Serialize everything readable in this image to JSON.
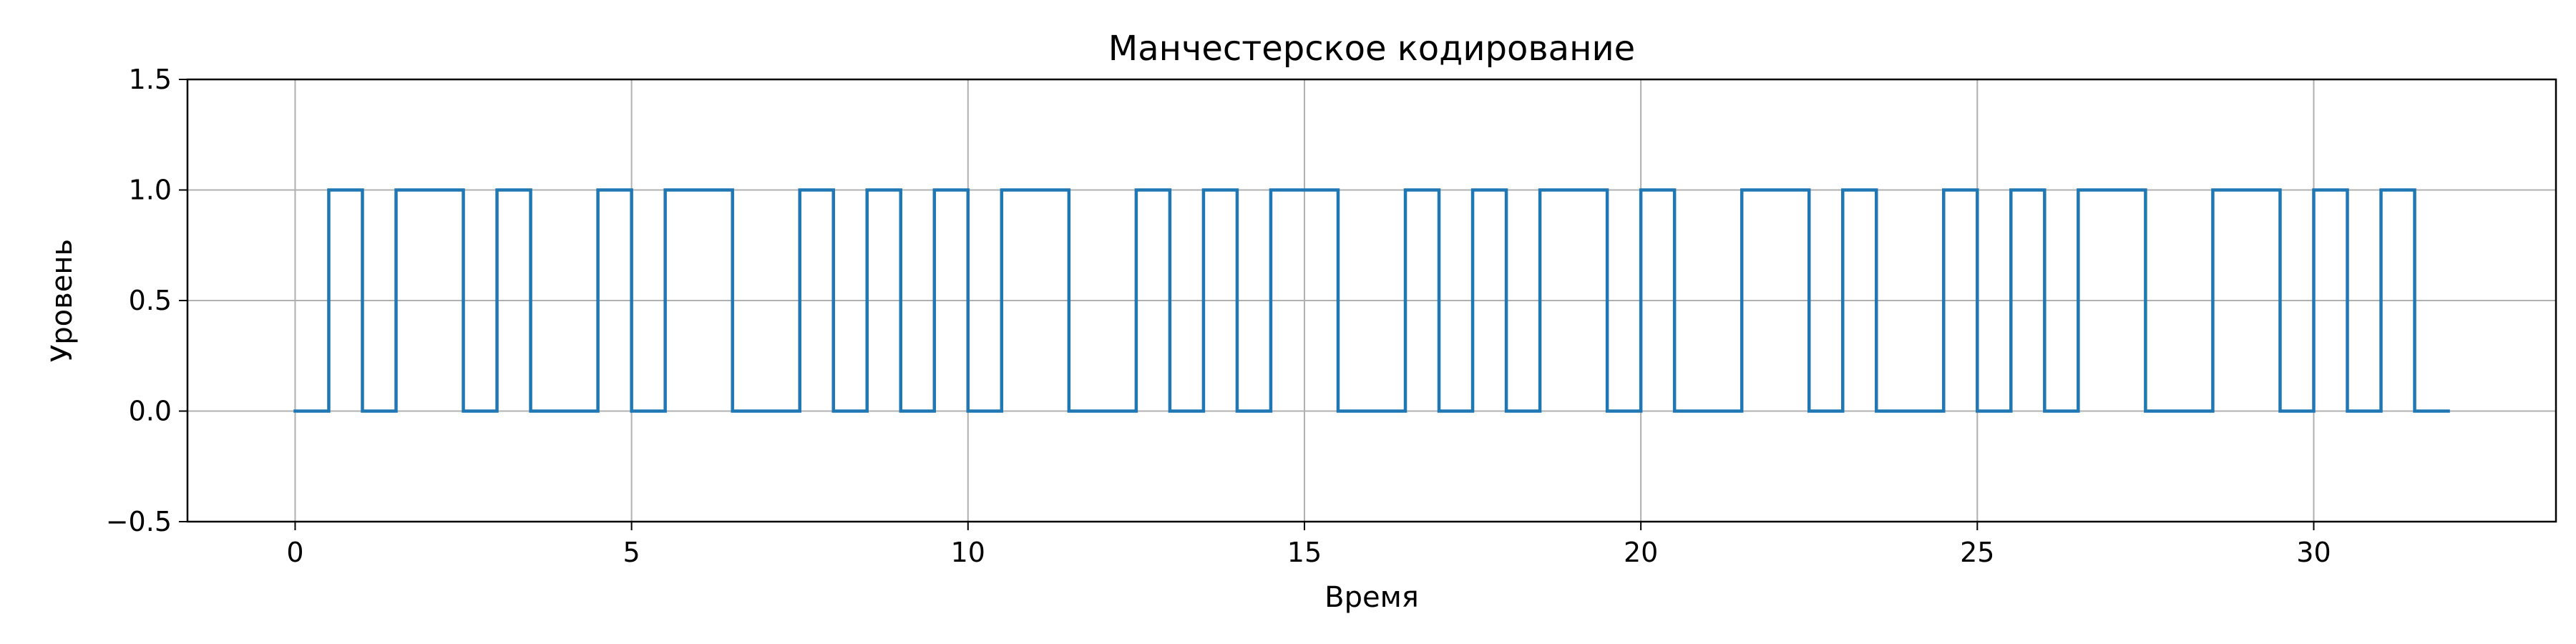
{
  "chart_data": {
    "type": "line",
    "step": "post",
    "title": "Манчестерское кодирование",
    "xlabel": "Время",
    "ylabel": "Уровень",
    "xlim": [
      -1.6,
      33.6
    ],
    "ylim": [
      -0.5,
      1.5
    ],
    "xticks": [
      0,
      5,
      10,
      15,
      20,
      25,
      30
    ],
    "xtick_labels": [
      "0",
      "5",
      "10",
      "15",
      "20",
      "25",
      "30"
    ],
    "yticks": [
      -0.5,
      0.0,
      0.5,
      1.0,
      1.5
    ],
    "ytick_labels": [
      "−0.5",
      "0.0",
      "0.5",
      "1.0",
      "1.5"
    ],
    "grid": true,
    "line_color": "#1f77b4",
    "series": [
      {
        "x": [
          0,
          0.5,
          1,
          1.5,
          2,
          2.5,
          3,
          3.5,
          4,
          4.5,
          5,
          5.5,
          6,
          6.5,
          7,
          7.5,
          8,
          8.5,
          9,
          9.5,
          10,
          10.5,
          11,
          11.5,
          12,
          12.5,
          13,
          13.5,
          14,
          14.5,
          15,
          15.5,
          16,
          16.5,
          17,
          17.5,
          18,
          18.5,
          19,
          19.5,
          20,
          20.5,
          21,
          21.5,
          22,
          22.5,
          23,
          23.5,
          24,
          24.5,
          25,
          25.5,
          26,
          26.5,
          27,
          27.5,
          28,
          28.5,
          29,
          29.5,
          30,
          30.5,
          31,
          31.5,
          32
        ],
        "y": [
          0,
          1,
          0,
          1,
          1,
          0,
          1,
          0,
          0,
          1,
          0,
          1,
          1,
          0,
          0,
          1,
          0,
          1,
          0,
          1,
          0,
          1,
          1,
          0,
          0,
          1,
          0,
          1,
          0,
          1,
          1,
          0,
          0,
          1,
          0,
          1,
          0,
          1,
          1,
          0,
          1,
          0,
          0,
          1,
          1,
          0,
          1,
          0,
          0,
          1,
          0,
          1,
          0,
          1,
          1,
          0,
          0,
          1,
          1,
          0,
          1,
          0,
          1,
          0,
          0
        ]
      }
    ]
  }
}
